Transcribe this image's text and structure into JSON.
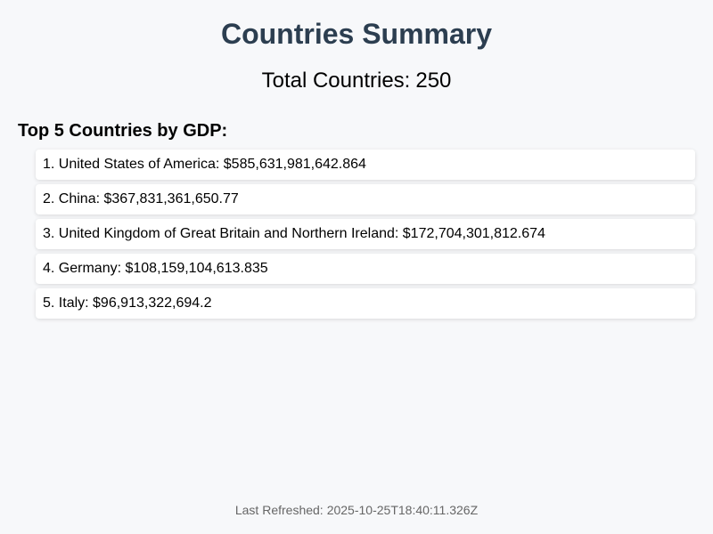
{
  "page": {
    "title": "Countries Summary",
    "total_label": "Total Countries:",
    "total_value": "250",
    "top_heading": "Top 5 Countries by GDP:",
    "refreshed_label": "Last Refreshed:",
    "refreshed_value": "2025-10-25T18:40:11.326Z"
  },
  "gdp_list": [
    {
      "rank": "1.",
      "country": "United States of America",
      "gdp": "$585,631,981,642.864"
    },
    {
      "rank": "2.",
      "country": "China",
      "gdp": "$367,831,361,650.77"
    },
    {
      "rank": "3.",
      "country": "United Kingdom of Great Britain and Northern Ireland",
      "gdp": "$172,704,301,812.674"
    },
    {
      "rank": "4.",
      "country": "Germany",
      "gdp": "$108,159,104,613.835"
    },
    {
      "rank": "5.",
      "country": "Italy",
      "gdp": "$96,913,322,694.2"
    }
  ],
  "colors": {
    "title": "#2c3e50",
    "background": "#f7f8fa",
    "card": "#ffffff",
    "muted_text": "#666666"
  }
}
